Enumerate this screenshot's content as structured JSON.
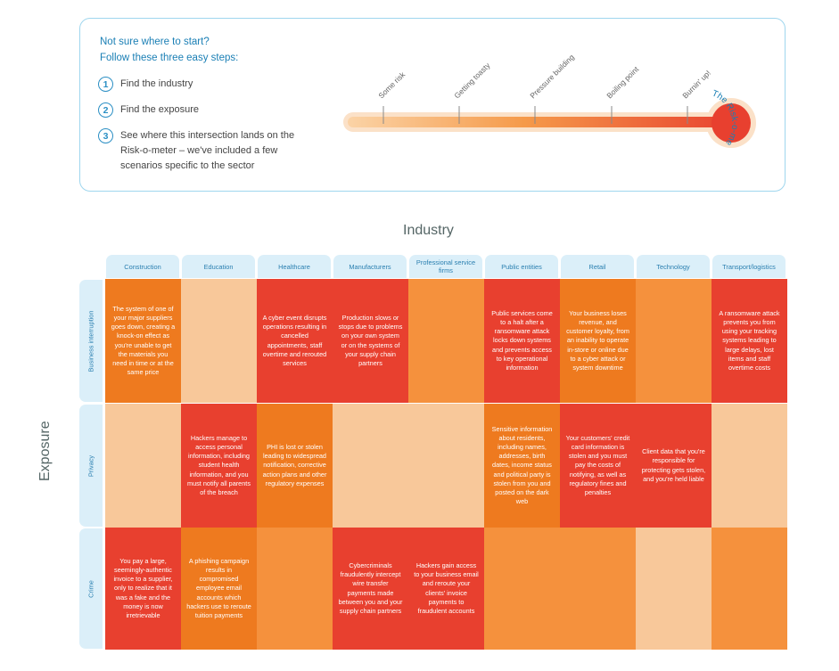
{
  "intro": {
    "line1": "Not sure where to start?",
    "line2": "Follow these three easy steps:",
    "steps": [
      {
        "num": "1",
        "text": "Find the industry"
      },
      {
        "num": "2",
        "text": "Find the exposure"
      },
      {
        "num": "3",
        "text": "See where this intersection lands on the Risk-o-meter – we've included a few scenarios specific to the sector"
      }
    ]
  },
  "meter": {
    "title": "The Risk-o-meter",
    "levels": [
      "Some risk",
      "Getting toasty",
      "Pressure building",
      "Boiling point",
      "Burnin' up!"
    ]
  },
  "grid": {
    "industry_label": "Industry",
    "exposure_label": "Exposure",
    "industries": [
      "Construction",
      "Education",
      "Healthcare",
      "Manufacturers",
      "Professional service firms",
      "Public entities",
      "Retail",
      "Technology",
      "Transport/logistics"
    ],
    "exposures": [
      "Business interruption",
      "Privacy",
      "Crime"
    ],
    "level_colors": {
      "0": "#f8c89a",
      "1": "#f5913d",
      "2": "#ee7a1f",
      "3": "#e8402f"
    },
    "rows": [
      {
        "levels": [
          2,
          0,
          3,
          3,
          1,
          3,
          2,
          1,
          3
        ],
        "texts": [
          "The system of one of your major suppliers goes down, creating a knock-on effect as you're unable to get the materials you need in time or at the same price",
          "",
          "A cyber event disrupts operations resulting in cancelled appointments, staff overtime and rerouted services",
          "Production slows or stops due to problems on your own system or on the systems of your supply chain partners",
          "",
          "Public services come to a halt after a ransomware attack locks down systems and prevents access to key operational information",
          "Your business loses revenue, and customer loyalty, from an inability to operate in-store or online due to a cyber attack or system downtime",
          "",
          "A ransomware attack prevents you from using your tracking systems leading to large delays, lost items and staff overtime costs"
        ]
      },
      {
        "levels": [
          0,
          3,
          2,
          0,
          0,
          2,
          3,
          3,
          0
        ],
        "texts": [
          "",
          "Hackers manage to access personal information, including student health information, and you must notify all parents of the breach",
          "PHI is lost or stolen leading to widespread notification, corrective action plans and other regulatory expenses",
          "",
          "",
          "Sensitive information about residents, including names, addresses, birth dates, income status and political party is stolen from you and posted on the dark web",
          "Your customers' credit card information is stolen and you must pay the costs of notifying, as well as regulatory fines and penalties",
          "Client data that you're responsible for protecting gets stolen, and you're held liable",
          ""
        ]
      },
      {
        "levels": [
          3,
          2,
          1,
          3,
          3,
          1,
          1,
          0,
          1
        ],
        "texts": [
          "You pay a large, seemingly-authentic invoice to a supplier, only to realize that it was a fake and the money is now irretrievable",
          "A phishing campaign results in compromised employee email accounts which hackers use to reroute tuition payments",
          "",
          "Cybercriminals fraudulently intercept wire transfer payments made between you and your supply chain partners",
          "Hackers gain access to your business email and reroute your clients' invoice payments to fraudulent accounts",
          "",
          "",
          "",
          ""
        ]
      }
    ]
  }
}
